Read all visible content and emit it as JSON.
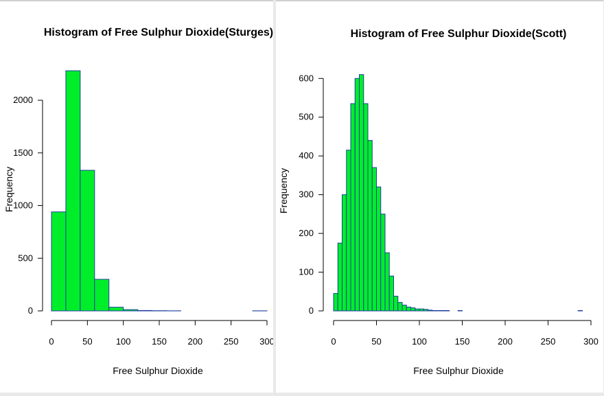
{
  "colors": {
    "bar_fill": "#00ee2a",
    "bar_stroke": "#1f3fa0",
    "axis": "#000000",
    "background": "#ffffff"
  },
  "chart_data": [
    {
      "type": "bar",
      "title": "Histogram of Free Sulphur Dioxide(Sturges)",
      "xlabel": "Free Sulphur Dioxide",
      "ylabel": "Frequency",
      "xlim": [
        0,
        300
      ],
      "ylim": [
        0,
        2300
      ],
      "x_ticks": [
        0,
        50,
        100,
        150,
        200,
        250,
        300
      ],
      "y_ticks": [
        0,
        500,
        1000,
        1500,
        2000
      ],
      "bin_width": 20,
      "bin_starts": [
        0,
        20,
        40,
        60,
        80,
        100,
        120,
        140,
        160,
        180,
        200,
        220,
        240,
        260,
        280
      ],
      "values": [
        940,
        2280,
        1335,
        300,
        35,
        12,
        4,
        2,
        1,
        0,
        0,
        0,
        0,
        0,
        1
      ],
      "grid": false
    },
    {
      "type": "bar",
      "title": "Histogram of Free Sulphur Dioxide(Scott)",
      "xlabel": "Free Sulphur Dioxide",
      "ylabel": "Frequency",
      "xlim": [
        0,
        300
      ],
      "ylim": [
        0,
        620
      ],
      "x_ticks": [
        0,
        50,
        100,
        150,
        200,
        250,
        300
      ],
      "y_ticks": [
        0,
        100,
        200,
        300,
        400,
        500,
        600
      ],
      "bin_width": 5,
      "bin_starts": [
        0,
        5,
        10,
        15,
        20,
        25,
        30,
        35,
        40,
        45,
        50,
        55,
        60,
        65,
        70,
        75,
        80,
        85,
        90,
        95,
        100,
        105,
        110,
        115,
        120,
        125,
        130,
        135,
        140,
        145,
        150,
        155,
        160,
        165,
        170,
        175,
        180,
        185,
        190,
        195,
        200,
        205,
        210,
        215,
        220,
        225,
        230,
        235,
        240,
        245,
        250,
        255,
        260,
        265,
        270,
        275,
        280,
        285
      ],
      "values": [
        45,
        175,
        300,
        415,
        535,
        600,
        610,
        535,
        440,
        370,
        320,
        250,
        150,
        90,
        38,
        22,
        15,
        10,
        8,
        5,
        5,
        4,
        2,
        1,
        1,
        1,
        1,
        0,
        0,
        1,
        0,
        0,
        0,
        0,
        0,
        0,
        0,
        0,
        0,
        0,
        0,
        0,
        0,
        0,
        0,
        0,
        0,
        0,
        0,
        0,
        0,
        0,
        0,
        0,
        0,
        0,
        0,
        1
      ],
      "grid": false
    }
  ]
}
